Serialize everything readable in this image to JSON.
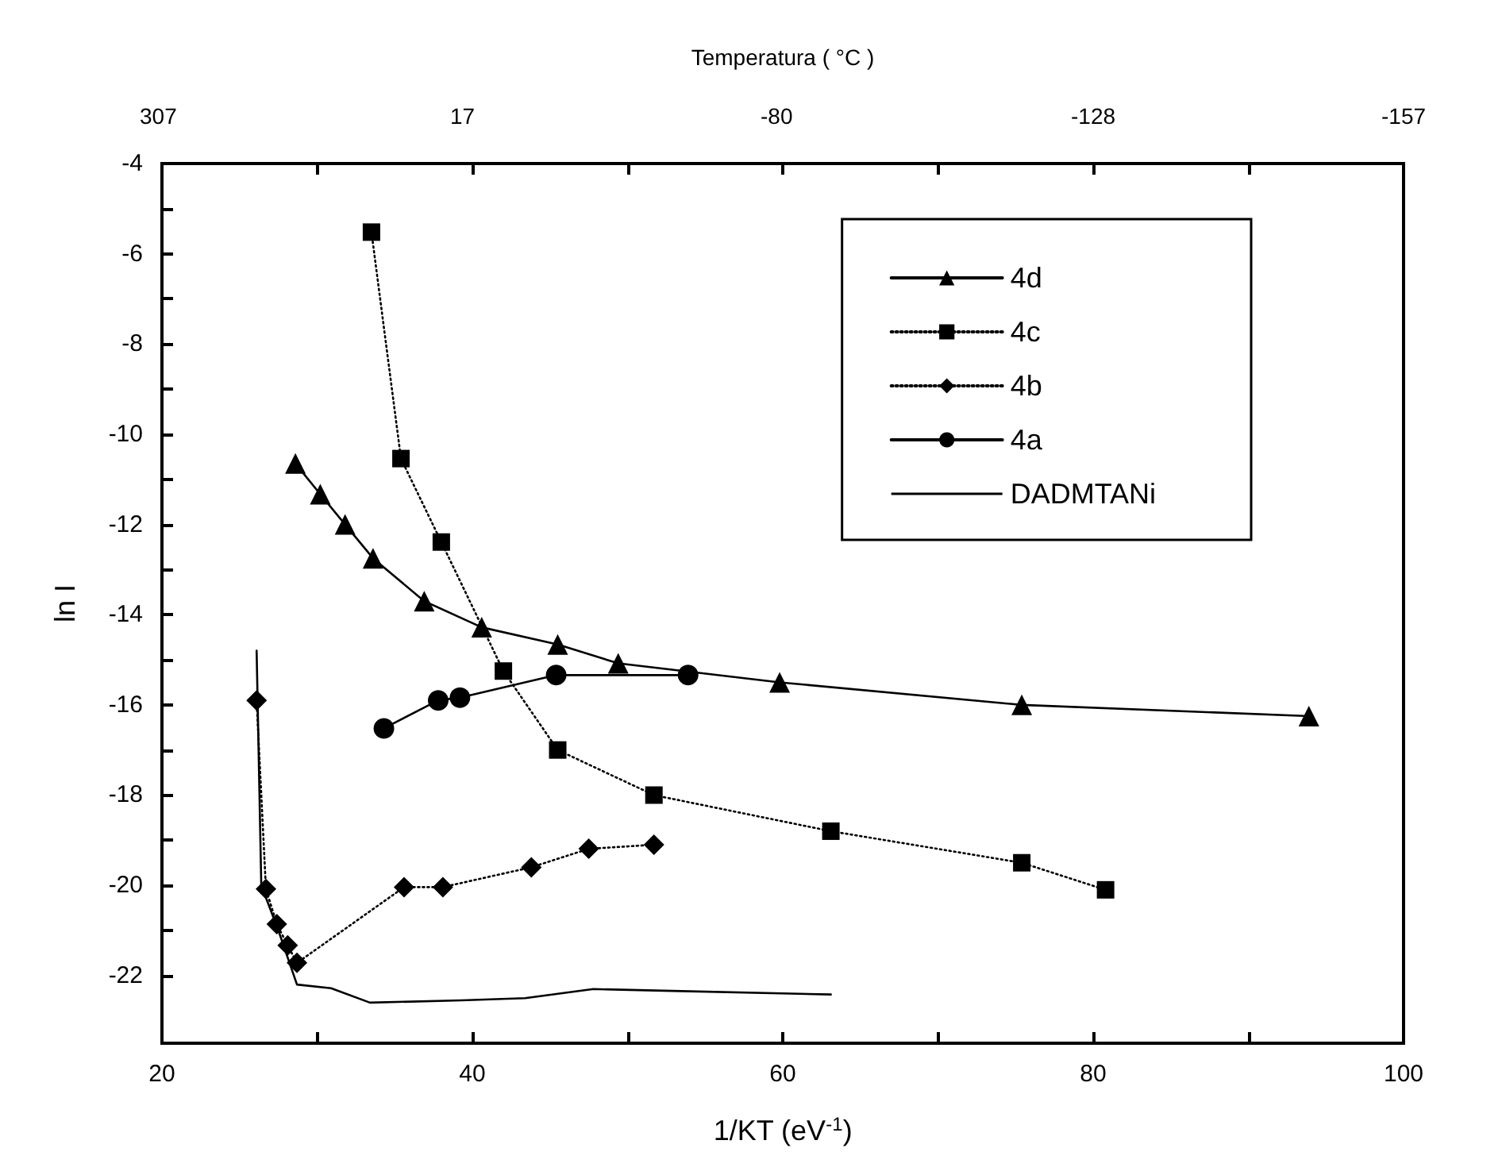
{
  "chart_data": {
    "type": "line",
    "xlabel": "1/KT (eV$^{-1}$)",
    "ylabel": "ln I",
    "x2label": "Temperatura ( °C )",
    "xlim": [
      20,
      100
    ],
    "xticks": [
      20,
      {
        "value": 30,
        "label": null
      },
      40,
      {
        "value": 50,
        "label": null
      },
      60,
      {
        "value": 70,
        "label": null
      },
      80,
      {
        "value": 90,
        "label": null
      },
      100
    ],
    "annotations": [
      "307",
      "17",
      "-80",
      "-128",
      "-157"
    ],
    "ylim": [
      -23.5,
      -4
    ],
    "yticks": [
      -22,
      {
        "value": -21,
        "label": null
      },
      -20,
      {
        "value": -19,
        "label": null
      },
      -18,
      {
        "value": -17,
        "label": null
      },
      -16,
      {
        "value": -15,
        "label": null
      },
      -14,
      {
        "value": -13,
        "label": null
      },
      -12,
      {
        "value": -11,
        "label": null
      },
      -10,
      {
        "value": -9,
        "label": null
      },
      -8,
      {
        "value": -7,
        "label": null
      },
      -6,
      {
        "value": -5,
        "label": null
      },
      -4
    ],
    "grid": false,
    "legend": "top right",
    "series": [
      {
        "name": "4d",
        "color": "#000000",
        "marker": "triangle",
        "line_style": "solid",
        "x": [
          28.6,
          30.2,
          31.8,
          33.6,
          36.9,
          40.6,
          45.5,
          49.4,
          59.8,
          75.4,
          93.9
        ],
        "values": [
          -10.65,
          -11.33,
          -12.0,
          -12.75,
          -13.7,
          -14.28,
          -14.66,
          -15.08,
          -15.5,
          -16.0,
          -16.25
        ]
      },
      {
        "name": "4c",
        "color": "#000000",
        "marker": "square",
        "line_style": "dotted",
        "x": [
          33.5,
          35.4,
          38.0,
          42.0,
          45.5,
          51.7,
          63.1,
          75.4,
          80.8
        ],
        "values": [
          -5.52,
          -10.54,
          -12.39,
          -15.25,
          -17.0,
          -18.0,
          -18.8,
          -19.5,
          -20.1
        ]
      },
      {
        "name": "4b",
        "color": "#000000",
        "marker": "diamond",
        "line_style": "dotted",
        "x": [
          26.1,
          26.7,
          27.4,
          28.1,
          28.7,
          35.6,
          38.1,
          43.8,
          47.5,
          51.7
        ],
        "values": [
          -15.9,
          -20.08,
          -20.86,
          -21.33,
          -21.72,
          -20.04,
          -20.04,
          -19.6,
          -19.19,
          -19.1
        ]
      },
      {
        "name": "4a",
        "color": "#000000",
        "marker": "circle",
        "line_style": "solid",
        "x": [
          34.3,
          37.8,
          39.2,
          45.4,
          53.9
        ],
        "values": [
          -16.52,
          -15.9,
          -15.84,
          -15.34,
          -15.34
        ]
      },
      {
        "name": "DADMTANi",
        "color": "#000000",
        "marker": "none",
        "line_style": "solid",
        "x": [
          26.1,
          26.4,
          27.5,
          28.7,
          30.9,
          33.4,
          39.3,
          43.4,
          47.8,
          52.9,
          63.1
        ],
        "values": [
          -14.8,
          -20.0,
          -21.0,
          -22.2,
          -22.28,
          -22.6,
          -22.55,
          -22.5,
          -22.3,
          -22.34,
          -22.42
        ]
      }
    ]
  }
}
